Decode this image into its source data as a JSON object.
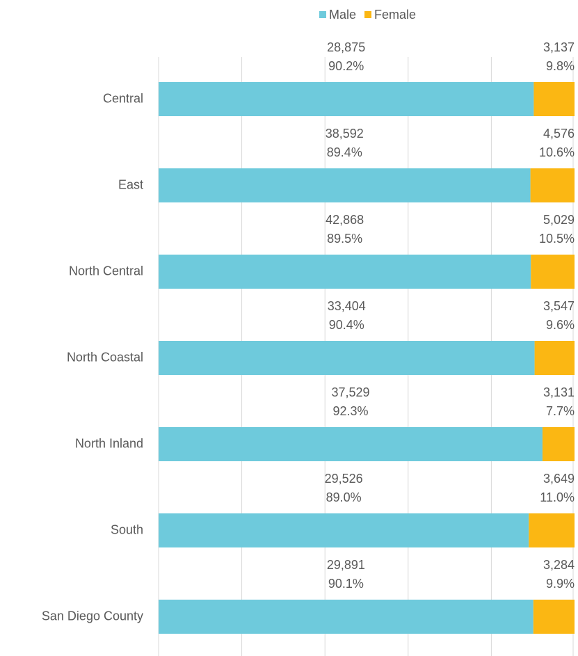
{
  "chart_data": {
    "type": "stacked-bar-100",
    "orientation": "horizontal",
    "categories": [
      "Central",
      "East",
      "North Central",
      "North Coastal",
      "North Inland",
      "South",
      "San Diego County"
    ],
    "series": [
      {
        "name": "Male",
        "color": "#6ecadc",
        "values": [
          90.2,
          89.4,
          89.5,
          90.4,
          92.3,
          89.0,
          90.1
        ],
        "value_labels": [
          "90.2%",
          "89.4%",
          "89.5%",
          "90.4%",
          "92.3%",
          "89.0%",
          "90.1%"
        ],
        "count_labels": [
          "28,875",
          "38,592",
          "42,868",
          "33,404",
          "37,529",
          "29,526",
          "29,891"
        ]
      },
      {
        "name": "Female",
        "color": "#fbb713",
        "values": [
          9.8,
          10.6,
          10.5,
          9.6,
          7.7,
          11.0,
          9.9
        ],
        "value_labels": [
          "9.8%",
          "10.6%",
          "10.5%",
          "9.6%",
          "7.7%",
          "11.0%",
          "9.9%"
        ],
        "count_labels": [
          "3,137",
          "4,576",
          "5,029",
          "3,547",
          "3,131",
          "3,649",
          "3,284"
        ]
      }
    ],
    "xlim": [
      0,
      100
    ],
    "xticks": [
      0,
      20,
      40,
      60,
      80,
      100
    ],
    "grid": true,
    "legend": "top"
  }
}
